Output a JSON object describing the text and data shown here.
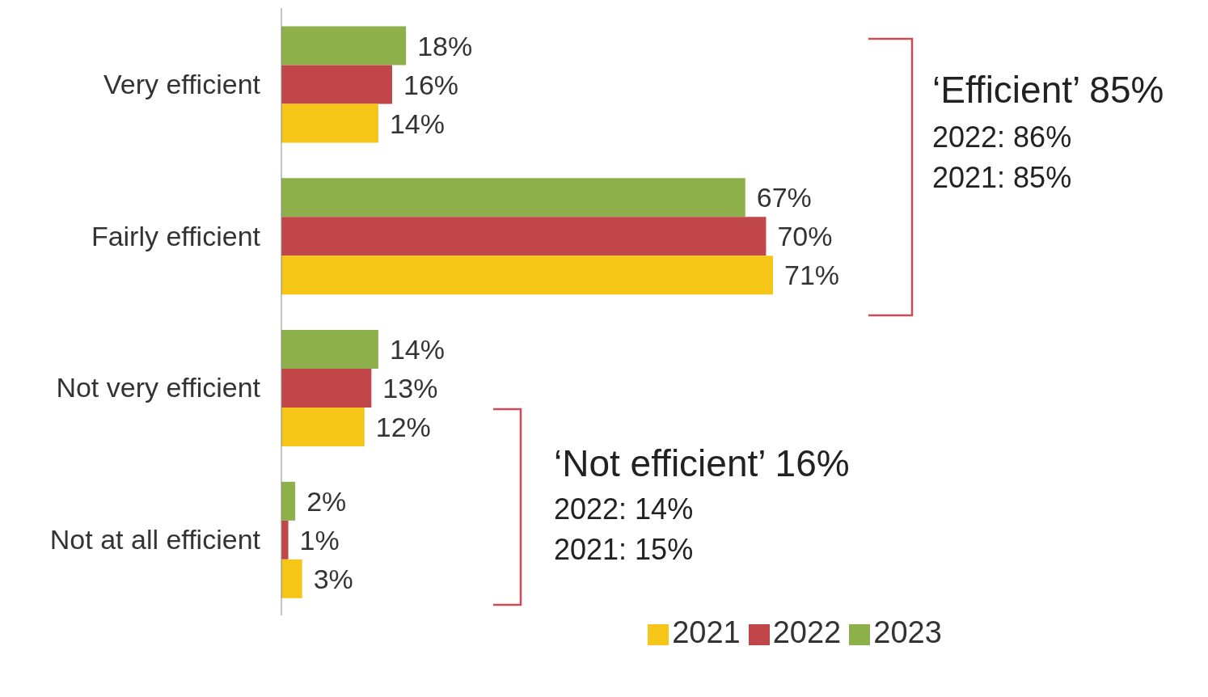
{
  "chart_data": {
    "type": "bar",
    "orientation": "horizontal",
    "categories": [
      "Very efficient",
      "Fairly efficient",
      "Not very efficient",
      "Not at all efficient"
    ],
    "series": [
      {
        "name": "2023",
        "color": "#8db04a",
        "values": [
          18,
          67,
          14,
          2
        ],
        "value_labels": [
          "18%",
          "67%",
          "14%",
          "2%"
        ]
      },
      {
        "name": "2022",
        "color": "#c0464a",
        "values": [
          16,
          70,
          13,
          1
        ],
        "value_labels": [
          "16%",
          "70%",
          "13%",
          "1%"
        ]
      },
      {
        "name": "2021",
        "color": "#f5c518",
        "values": [
          14,
          71,
          12,
          3
        ],
        "value_labels": [
          "14%",
          "71%",
          "12%",
          "3%"
        ]
      }
    ],
    "legend": "bottom",
    "grid": false,
    "annotations": [
      "‘Efficient’ 85%",
      "2022: 86%",
      "2021: 85%",
      "‘Not efficient’ 16%",
      "2022: 14%",
      "2021: 15%"
    ]
  }
}
